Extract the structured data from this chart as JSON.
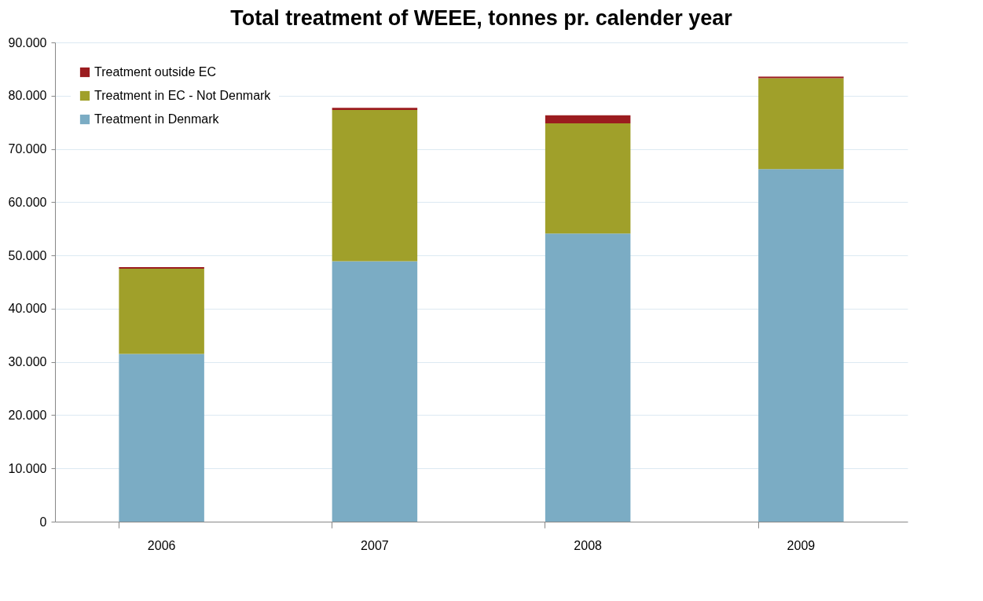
{
  "chart_data": {
    "type": "bar",
    "title": "Total treatment of WEEE, tonnes pr. calender year",
    "categories": [
      "2006",
      "2007",
      "2008",
      "2009"
    ],
    "stacked": true,
    "series": [
      {
        "name": "Treatment in Denmark",
        "color": "#7bacc4",
        "values": [
          31500,
          48900,
          54100,
          66200
        ]
      },
      {
        "name": "Treatment in EC - Not Denmark",
        "color": "#a0a02a",
        "values": [
          16000,
          28400,
          20700,
          17100
        ]
      },
      {
        "name": "Treatment outside  EC",
        "color": "#9b1c1f",
        "values": [
          300,
          400,
          1500,
          300
        ]
      }
    ],
    "ylim": [
      0,
      90000
    ],
    "yticks": [
      {
        "value": 0,
        "label": "0"
      },
      {
        "value": 10000,
        "label": "10.000"
      },
      {
        "value": 20000,
        "label": "20.000"
      },
      {
        "value": 30000,
        "label": "30.000"
      },
      {
        "value": 40000,
        "label": "40.000"
      },
      {
        "value": 50000,
        "label": "50.000"
      },
      {
        "value": 60000,
        "label": "60.000"
      },
      {
        "value": 70000,
        "label": "70.000"
      },
      {
        "value": 80000,
        "label": "80.000"
      },
      {
        "value": 90000,
        "label": "90.000"
      }
    ],
    "grid": "y",
    "legend": "top left"
  }
}
